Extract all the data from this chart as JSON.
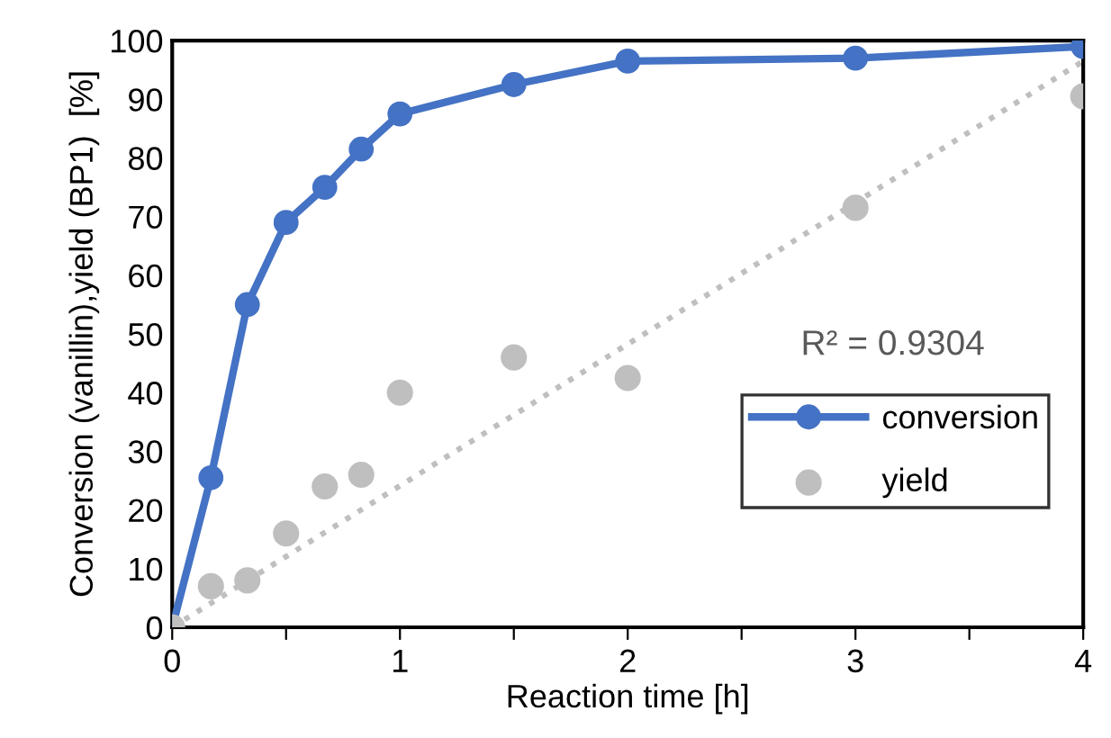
{
  "chart_data": {
    "type": "line",
    "xlabel": "Reaction time [h]",
    "ylabel": "Conversion (vanillin),yield (BP1)  [%]",
    "xlim": [
      0,
      4
    ],
    "ylim": [
      0,
      100
    ],
    "xticks": [
      0,
      {
        "value": 0.5,
        "label": null
      },
      1,
      {
        "value": 1.5,
        "label": null
      },
      2,
      {
        "value": 2.5,
        "label": null
      },
      3,
      {
        "value": 3.5,
        "label": null
      },
      4
    ],
    "yticks": [
      0,
      10,
      20,
      30,
      40,
      50,
      60,
      70,
      80,
      90,
      100
    ],
    "grid": false,
    "legend": "right",
    "annotations": [
      "R² = 0.9304"
    ],
    "series": [
      {
        "name": "conversion",
        "color": "#4472c4",
        "marker": "circle",
        "line_style": "solid",
        "x": [
          0,
          0.17,
          0.33,
          0.5,
          0.67,
          0.83,
          1,
          1.5,
          2,
          3,
          4
        ],
        "values": [
          0,
          25.5,
          55,
          69,
          75,
          81.5,
          87.5,
          92.5,
          96.5,
          97,
          99
        ]
      },
      {
        "name": "yield",
        "type": "scatter",
        "color": "#bfbfbf",
        "marker": "circle",
        "x": [
          0,
          0.17,
          0.33,
          0.5,
          0.67,
          0.83,
          1,
          1.5,
          2,
          3,
          4
        ],
        "values": [
          0,
          7,
          8,
          16,
          24,
          26,
          40,
          46,
          42.5,
          71.5,
          90.5
        ]
      },
      {
        "color": "#bfbfbf",
        "marker": "none",
        "line_style": "dotted",
        "x": [
          0,
          4
        ],
        "values": [
          0,
          96.5
        ]
      }
    ]
  }
}
